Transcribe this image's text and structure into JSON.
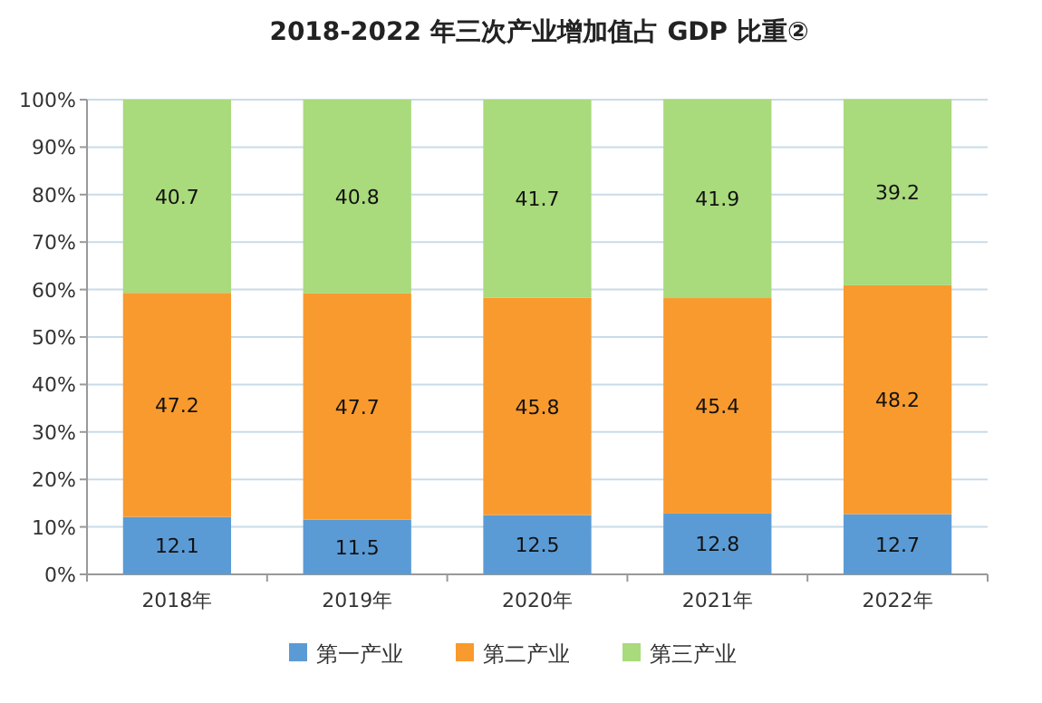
{
  "chart_data": {
    "type": "bar",
    "title": "2018-2022 年三次产业增加值占 GDP 比重②",
    "categories": [
      "2018年",
      "2019年",
      "2020年",
      "2021年",
      "2022年"
    ],
    "stacked": true,
    "data_labels": true,
    "grid": "y",
    "legend": "bottom",
    "ylim": [
      0,
      100
    ],
    "yticks": [
      {
        "value": 0,
        "label": "0%"
      },
      {
        "value": 10,
        "label": "10%"
      },
      {
        "value": 20,
        "label": "20%"
      },
      {
        "value": 30,
        "label": "30%"
      },
      {
        "value": 40,
        "label": "40%"
      },
      {
        "value": 50,
        "label": "50%"
      },
      {
        "value": 60,
        "label": "60%"
      },
      {
        "value": 70,
        "label": "70%"
      },
      {
        "value": 80,
        "label": "80%"
      },
      {
        "value": 90,
        "label": "90%"
      },
      {
        "value": 100,
        "label": "100%"
      }
    ],
    "series": [
      {
        "name": "第一产业",
        "color": "#5b9bd5",
        "values": [
          12.1,
          11.5,
          12.5,
          12.8,
          12.7
        ]
      },
      {
        "name": "第二产业",
        "color": "#f99a2e",
        "values": [
          47.2,
          47.7,
          45.8,
          45.4,
          48.2
        ]
      },
      {
        "name": "第三产业",
        "color": "#a9da7c",
        "values": [
          40.7,
          40.8,
          41.7,
          41.9,
          39.2
        ]
      }
    ]
  }
}
